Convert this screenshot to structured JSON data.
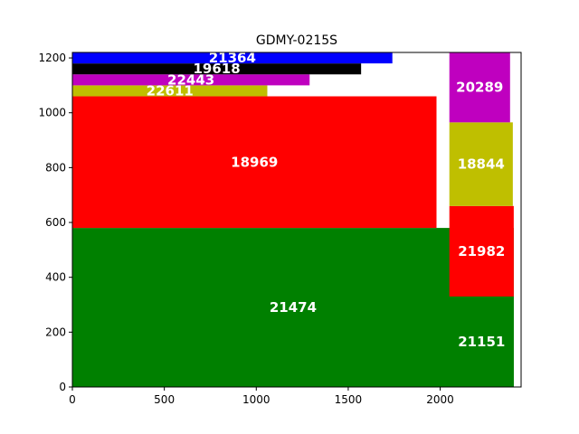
{
  "chart_data": {
    "type": "bar",
    "title": "GDMY-0215S",
    "xlabel": "",
    "ylabel": "",
    "xlim": [
      0,
      2440
    ],
    "ylim": [
      0,
      1220
    ],
    "xticks": [
      0,
      500,
      1000,
      1500,
      2000
    ],
    "yticks": [
      0,
      200,
      400,
      600,
      800,
      1000,
      1200
    ],
    "grid": false,
    "rects": [
      {
        "label": "21474",
        "x0": 0,
        "x1": 2400,
        "y0": 0,
        "y1": 580,
        "color": "#008000"
      },
      {
        "label": "18969",
        "x0": 0,
        "x1": 1980,
        "y0": 580,
        "y1": 1060,
        "color": "#ff0000"
      },
      {
        "label": "22611",
        "x0": 0,
        "x1": 1060,
        "y0": 1060,
        "y1": 1100,
        "color": "#bfbf00"
      },
      {
        "label": "22443",
        "x0": 0,
        "x1": 1290,
        "y0": 1100,
        "y1": 1140,
        "color": "#bf00bf"
      },
      {
        "label": "19618",
        "x0": 0,
        "x1": 1570,
        "y0": 1140,
        "y1": 1180,
        "color": "#000000"
      },
      {
        "label": "21364",
        "x0": 0,
        "x1": 1740,
        "y0": 1180,
        "y1": 1220,
        "color": "#0000ff"
      },
      {
        "label": "21151",
        "x0": 2050,
        "x1": 2400,
        "y0": 0,
        "y1": 330,
        "color": "#008000"
      },
      {
        "label": "21982",
        "x0": 2050,
        "x1": 2400,
        "y0": 330,
        "y1": 660,
        "color": "#ff0000"
      },
      {
        "label": "18844",
        "x0": 2050,
        "x1": 2395,
        "y0": 660,
        "y1": 965,
        "color": "#bfbf00"
      },
      {
        "label": "20289",
        "x0": 2050,
        "x1": 2380,
        "y0": 965,
        "y1": 1220,
        "color": "#bf00bf"
      }
    ]
  }
}
